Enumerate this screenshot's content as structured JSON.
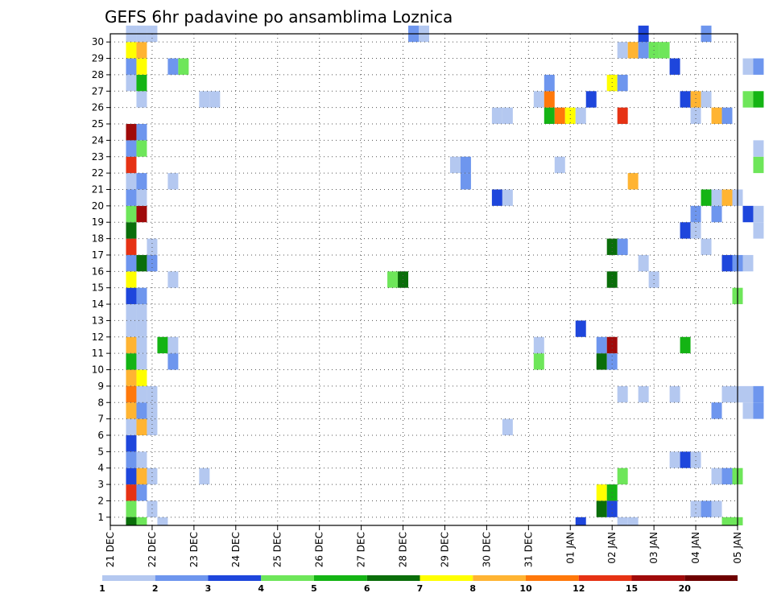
{
  "chart_data": {
    "type": "heatmap",
    "title": "GEFS 6hr padavine po ansamblima Loznica",
    "xlabel": "",
    "ylabel": "",
    "members": [
      1,
      2,
      3,
      4,
      5,
      6,
      7,
      8,
      9,
      10,
      11,
      12,
      13,
      14,
      15,
      16,
      17,
      18,
      19,
      20,
      21,
      22,
      23,
      24,
      25,
      26,
      27,
      28,
      29,
      30
    ],
    "y_tick_labels": [
      "1",
      "2",
      "3",
      "4",
      "5",
      "6",
      "7",
      "8",
      "9",
      "10",
      "11",
      "12",
      "13",
      "14",
      "15",
      "16",
      "17",
      "18",
      "19",
      "20",
      "21",
      "22",
      "23",
      "24",
      "25",
      "26",
      "27",
      "28",
      "29",
      "30"
    ],
    "x_tick_labels": [
      "21 DEC",
      "22 DEC",
      "23 DEC",
      "24 DEC",
      "25 DEC",
      "26 DEC",
      "27 DEC",
      "28 DEC",
      "29 DEC",
      "30 DEC",
      "31 DEC",
      "01 JAN",
      "02 JAN",
      "03 JAN",
      "04 JAN",
      "05 JAN"
    ],
    "x_range_days": [
      0,
      15
    ],
    "steps_per_day": 4,
    "grid": true,
    "colorbar": {
      "placement": "bottom",
      "colors": [
        "#b4c8f0",
        "#6e96ee",
        "#1e46dc",
        "#6ee65a",
        "#14b414",
        "#0a6e0a",
        "#ffff00",
        "#ffb432",
        "#ff780a",
        "#e63214",
        "#a00a0a",
        "#6e0000"
      ],
      "labels": [
        "1",
        "2",
        "3",
        "4",
        "5",
        "6",
        "7",
        "8",
        "10",
        "12",
        "15",
        "20"
      ]
    },
    "cells": [
      [
        1,
        0,
        "#0a6e0a"
      ],
      [
        1,
        1,
        "#6ee65a"
      ],
      [
        2,
        1,
        "#b4c8f0"
      ],
      [
        2,
        19,
        "#1e46dc"
      ],
      [
        1,
        30,
        "#b4c8f0"
      ],
      [
        2,
        30,
        "#b4c8f0"
      ],
      [
        1,
        3,
        "#1e46dc"
      ],
      [
        2,
        3,
        "#ffb432"
      ],
      [
        3,
        3,
        "#b4c8f0"
      ],
      [
        5,
        3,
        "#b4c8f0"
      ],
      [
        1,
        8,
        "#ff780a"
      ],
      [
        1,
        9,
        "#ffb432"
      ],
      [
        2,
        9,
        "#ffff00"
      ],
      [
        1,
        10,
        "#14b414"
      ],
      [
        2,
        10,
        "#b4c8f0"
      ],
      [
        1,
        11,
        "#ffb432"
      ],
      [
        2,
        11,
        "#b4c8f0"
      ],
      [
        1,
        12,
        "#b4c8f0"
      ],
      [
        2,
        12,
        "#b4c8f0"
      ]
    ],
    "rows": {
      "1": [
        [
          1,
          "#6ee65a"
        ],
        [
          3,
          "#b4c8f0"
        ],
        [
          46,
          "#0a6e0a"
        ],
        [
          47,
          "#1e46dc"
        ],
        [
          55,
          "#b4c8f0"
        ],
        [
          56,
          "#6e96ee"
        ],
        [
          57,
          "#b4c8f0"
        ]
      ],
      "2": [
        [
          1,
          "#e63214"
        ],
        [
          2,
          "#6e96ee"
        ],
        [
          46,
          "#ffff00"
        ],
        [
          47,
          "#14b414"
        ]
      ],
      "3": [
        [
          1,
          "#1e46dc"
        ],
        [
          2,
          "#ffb432"
        ],
        [
          3,
          "#b4c8f0"
        ],
        [
          8,
          "#b4c8f0"
        ],
        [
          48,
          "#6ee65a"
        ],
        [
          57,
          "#b4c8f0"
        ],
        [
          58,
          "#6e96ee"
        ],
        [
          59,
          "#6ee65a"
        ]
      ],
      "4": [
        [
          1,
          "#6e96ee"
        ],
        [
          2,
          "#b4c8f0"
        ],
        [
          53,
          "#b4c8f0"
        ],
        [
          54,
          "#1e46dc"
        ],
        [
          55,
          "#b4c8f0"
        ]
      ],
      "5": [
        [
          1,
          "#1e46dc"
        ]
      ],
      "6": [
        [
          1,
          "#b4c8f0"
        ],
        [
          2,
          "#ffb432"
        ],
        [
          3,
          "#b4c8f0"
        ],
        [
          37,
          "#b4c8f0"
        ]
      ],
      "7": [
        [
          1,
          "#ffb432"
        ],
        [
          2,
          "#6e96ee"
        ],
        [
          3,
          "#b4c8f0"
        ],
        [
          57,
          "#6e96ee"
        ],
        [
          60,
          "#b4c8f0"
        ],
        [
          61,
          "#6e96ee"
        ]
      ],
      "8": [
        [
          1,
          "#ff780a"
        ],
        [
          2,
          "#b4c8f0"
        ],
        [
          3,
          "#b4c8f0"
        ],
        [
          48,
          "#b4c8f0"
        ],
        [
          50,
          "#b4c8f0"
        ],
        [
          53,
          "#b4c8f0"
        ],
        [
          58,
          "#b4c8f0"
        ],
        [
          59,
          "#b4c8f0"
        ],
        [
          60,
          "#b4c8f0"
        ],
        [
          61,
          "#6e96ee"
        ]
      ],
      "9": [
        [
          1,
          "#ffb432"
        ],
        [
          2,
          "#ffff00"
        ]
      ],
      "10": [
        [
          1,
          "#14b414"
        ],
        [
          2,
          "#b4c8f0"
        ],
        [
          5,
          "#6e96ee"
        ],
        [
          40,
          "#6ee65a"
        ],
        [
          46,
          "#0a6e0a"
        ],
        [
          47,
          "#6e96ee"
        ]
      ],
      "11": [
        [
          1,
          "#ffb432"
        ],
        [
          2,
          "#b4c8f0"
        ],
        [
          4,
          "#14b414"
        ],
        [
          5,
          "#b4c8f0"
        ],
        [
          40,
          "#b4c8f0"
        ],
        [
          46,
          "#6e96ee"
        ],
        [
          47,
          "#a00a0a"
        ],
        [
          54,
          "#14b414"
        ]
      ],
      "12": [
        [
          1,
          "#b4c8f0"
        ],
        [
          2,
          "#b4c8f0"
        ],
        [
          44,
          "#1e46dc"
        ]
      ],
      "13": [
        [
          1,
          "#b4c8f0"
        ],
        [
          2,
          "#b4c8f0"
        ]
      ],
      "14": [
        [
          1,
          "#1e46dc"
        ],
        [
          2,
          "#6e96ee"
        ],
        [
          59,
          "#6ee65a"
        ]
      ],
      "15": [
        [
          1,
          "#ffff00"
        ],
        [
          5,
          "#b4c8f0"
        ],
        [
          26,
          "#6ee65a"
        ],
        [
          27,
          "#0a6e0a"
        ],
        [
          47,
          "#0a6e0a"
        ],
        [
          51,
          "#b4c8f0"
        ]
      ],
      "16": [
        [
          1,
          "#6e96ee"
        ],
        [
          2,
          "#0a6e0a"
        ],
        [
          3,
          "#6e96ee"
        ],
        [
          50,
          "#b4c8f0"
        ],
        [
          58,
          "#1e46dc"
        ],
        [
          59,
          "#6e96ee"
        ],
        [
          60,
          "#b4c8f0"
        ]
      ],
      "17": [
        [
          1,
          "#e63214"
        ],
        [
          3,
          "#b4c8f0"
        ],
        [
          47,
          "#0a6e0a"
        ],
        [
          48,
          "#6e96ee"
        ],
        [
          56,
          "#b4c8f0"
        ]
      ],
      "18": [
        [
          1,
          "#0a6e0a"
        ],
        [
          54,
          "#1e46dc"
        ],
        [
          55,
          "#b4c8f0"
        ],
        [
          61,
          "#b4c8f0"
        ]
      ],
      "19": [
        [
          1,
          "#6ee65a"
        ],
        [
          2,
          "#a00a0a"
        ],
        [
          55,
          "#6e96ee"
        ],
        [
          57,
          "#6e96ee"
        ],
        [
          60,
          "#1e46dc"
        ],
        [
          61,
          "#b4c8f0"
        ]
      ],
      "20": [
        [
          1,
          "#6e96ee"
        ],
        [
          2,
          "#b4c8f0"
        ],
        [
          36,
          "#1e46dc"
        ],
        [
          37,
          "#b4c8f0"
        ],
        [
          56,
          "#14b414"
        ],
        [
          57,
          "#b4c8f0"
        ],
        [
          58,
          "#ffb432"
        ],
        [
          59,
          "#b4c8f0"
        ]
      ],
      "21": [
        [
          1,
          "#b4c8f0"
        ],
        [
          2,
          "#6e96ee"
        ],
        [
          5,
          "#b4c8f0"
        ],
        [
          33,
          "#6e96ee"
        ],
        [
          49,
          "#ffb432"
        ]
      ],
      "22": [
        [
          1,
          "#e63214"
        ],
        [
          32,
          "#b4c8f0"
        ],
        [
          33,
          "#6e96ee"
        ],
        [
          42,
          "#b4c8f0"
        ],
        [
          61,
          "#6ee65a"
        ]
      ],
      "23": [
        [
          1,
          "#6e96ee"
        ],
        [
          2,
          "#6ee65a"
        ],
        [
          61,
          "#b4c8f0"
        ]
      ],
      "24": [
        [
          1,
          "#a00a0a"
        ],
        [
          2,
          "#6e96ee"
        ]
      ],
      "25": [
        [
          36,
          "#b4c8f0"
        ],
        [
          37,
          "#b4c8f0"
        ],
        [
          41,
          "#14b414"
        ],
        [
          42,
          "#ff780a"
        ],
        [
          43,
          "#ffff00"
        ],
        [
          44,
          "#b4c8f0"
        ],
        [
          48,
          "#e63214"
        ],
        [
          55,
          "#b4c8f0"
        ],
        [
          57,
          "#ffb432"
        ],
        [
          58,
          "#6e96ee"
        ]
      ],
      "26": [
        [
          2,
          "#b4c8f0"
        ],
        [
          8,
          "#b4c8f0"
        ],
        [
          9,
          "#b4c8f0"
        ],
        [
          40,
          "#b4c8f0"
        ],
        [
          41,
          "#ff780a"
        ],
        [
          45,
          "#1e46dc"
        ],
        [
          54,
          "#1e46dc"
        ],
        [
          55,
          "#ffb432"
        ],
        [
          56,
          "#b4c8f0"
        ],
        [
          60,
          "#6ee65a"
        ],
        [
          61,
          "#14b414"
        ]
      ],
      "27": [
        [
          1,
          "#b4c8f0"
        ],
        [
          2,
          "#14b414"
        ],
        [
          41,
          "#6e96ee"
        ],
        [
          47,
          "#ffff00"
        ],
        [
          48,
          "#6e96ee"
        ]
      ],
      "28": [
        [
          1,
          "#6e96ee"
        ],
        [
          2,
          "#ffff00"
        ],
        [
          5,
          "#6e96ee"
        ],
        [
          6,
          "#6ee65a"
        ],
        [
          53,
          "#1e46dc"
        ],
        [
          60,
          "#b4c8f0"
        ],
        [
          61,
          "#6e96ee"
        ]
      ],
      "29": [
        [
          1,
          "#ffff00"
        ],
        [
          2,
          "#ffb432"
        ],
        [
          48,
          "#b4c8f0"
        ],
        [
          49,
          "#ffb432"
        ],
        [
          50,
          "#6e96ee"
        ],
        [
          51,
          "#6ee65a"
        ],
        [
          52,
          "#6ee65a"
        ]
      ],
      "30": [
        [
          1,
          "#b4c8f0"
        ],
        [
          2,
          "#b4c8f0"
        ],
        [
          3,
          "#b4c8f0"
        ],
        [
          28,
          "#6e96ee"
        ],
        [
          29,
          "#b4c8f0"
        ],
        [
          50,
          "#1e46dc"
        ],
        [
          56,
          "#6e96ee"
        ]
      ]
    }
  }
}
